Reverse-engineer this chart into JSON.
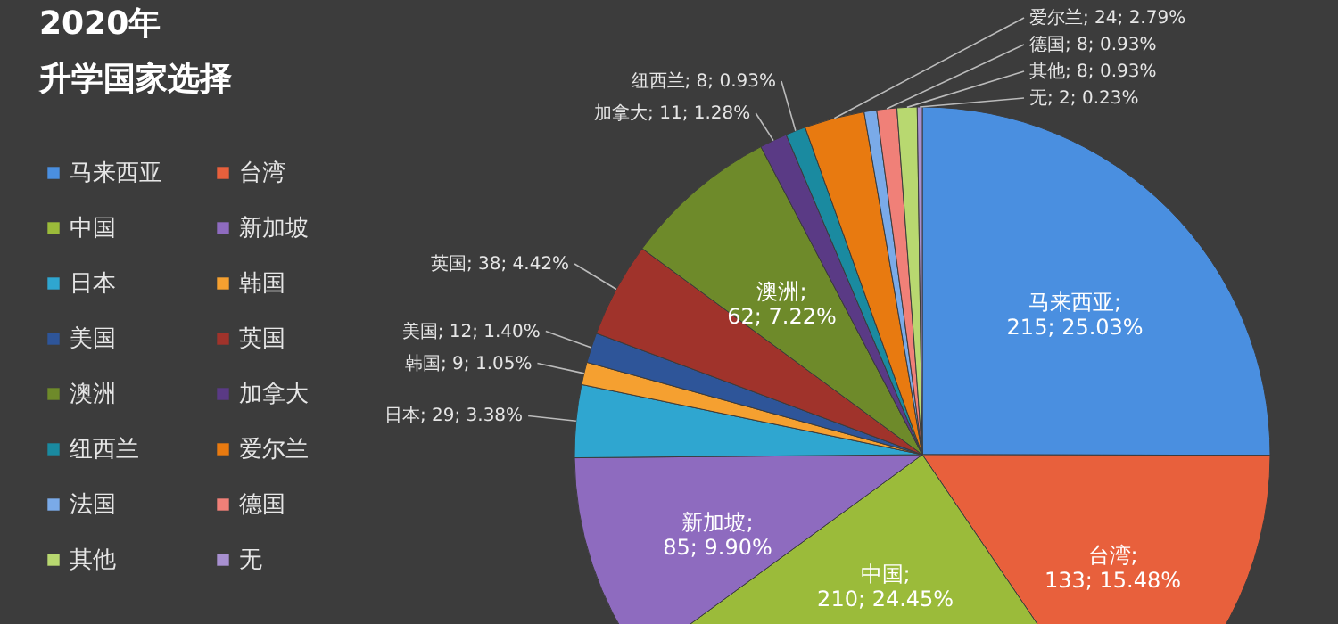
{
  "chart_data": {
    "type": "pie",
    "title": "2020年",
    "subtitle": "升学国家选择",
    "categories": [
      "马来西亚",
      "台湾",
      "中国",
      "新加坡",
      "日本",
      "韩国",
      "美国",
      "英国",
      "澳洲",
      "加拿大",
      "纽西兰",
      "爱尔兰",
      "法国",
      "德国",
      "其他",
      "无"
    ],
    "values": [
      215,
      133,
      210,
      85,
      29,
      9,
      12,
      38,
      62,
      11,
      8,
      24,
      5,
      8,
      8,
      2
    ],
    "colors": [
      "#4a8fe0",
      "#e8603c",
      "#9bbb3a",
      "#8e6bbf",
      "#2fa6d0",
      "#f5a030",
      "#2e5599",
      "#a0332b",
      "#6e8a2a",
      "#5a3a85",
      "#1a8aa0",
      "#e87a10",
      "#7aaae8",
      "#f08078",
      "#b8d870",
      "#a890d0"
    ],
    "value_labels": [
      "马来西亚; 215; 25.03%",
      "台湾; 133; 15.48%",
      "中国; 210; 24.45%",
      "新加坡; 85; 9.90%",
      "日本; 29; 3.38%",
      "韩国; 9; 1.05%",
      "美国; 12; 1.40%",
      "英国; 38; 4.42%",
      "澳洲; 62; 7.22%",
      "加拿大; 11; 1.28%",
      "纽西兰; 8; 0.93%",
      "爱尔兰; 24; 2.79%",
      null,
      "德国; 8; 0.93%",
      "其他; 8; 0.93%",
      "无; 2; 0.23%"
    ],
    "legend": "left"
  }
}
